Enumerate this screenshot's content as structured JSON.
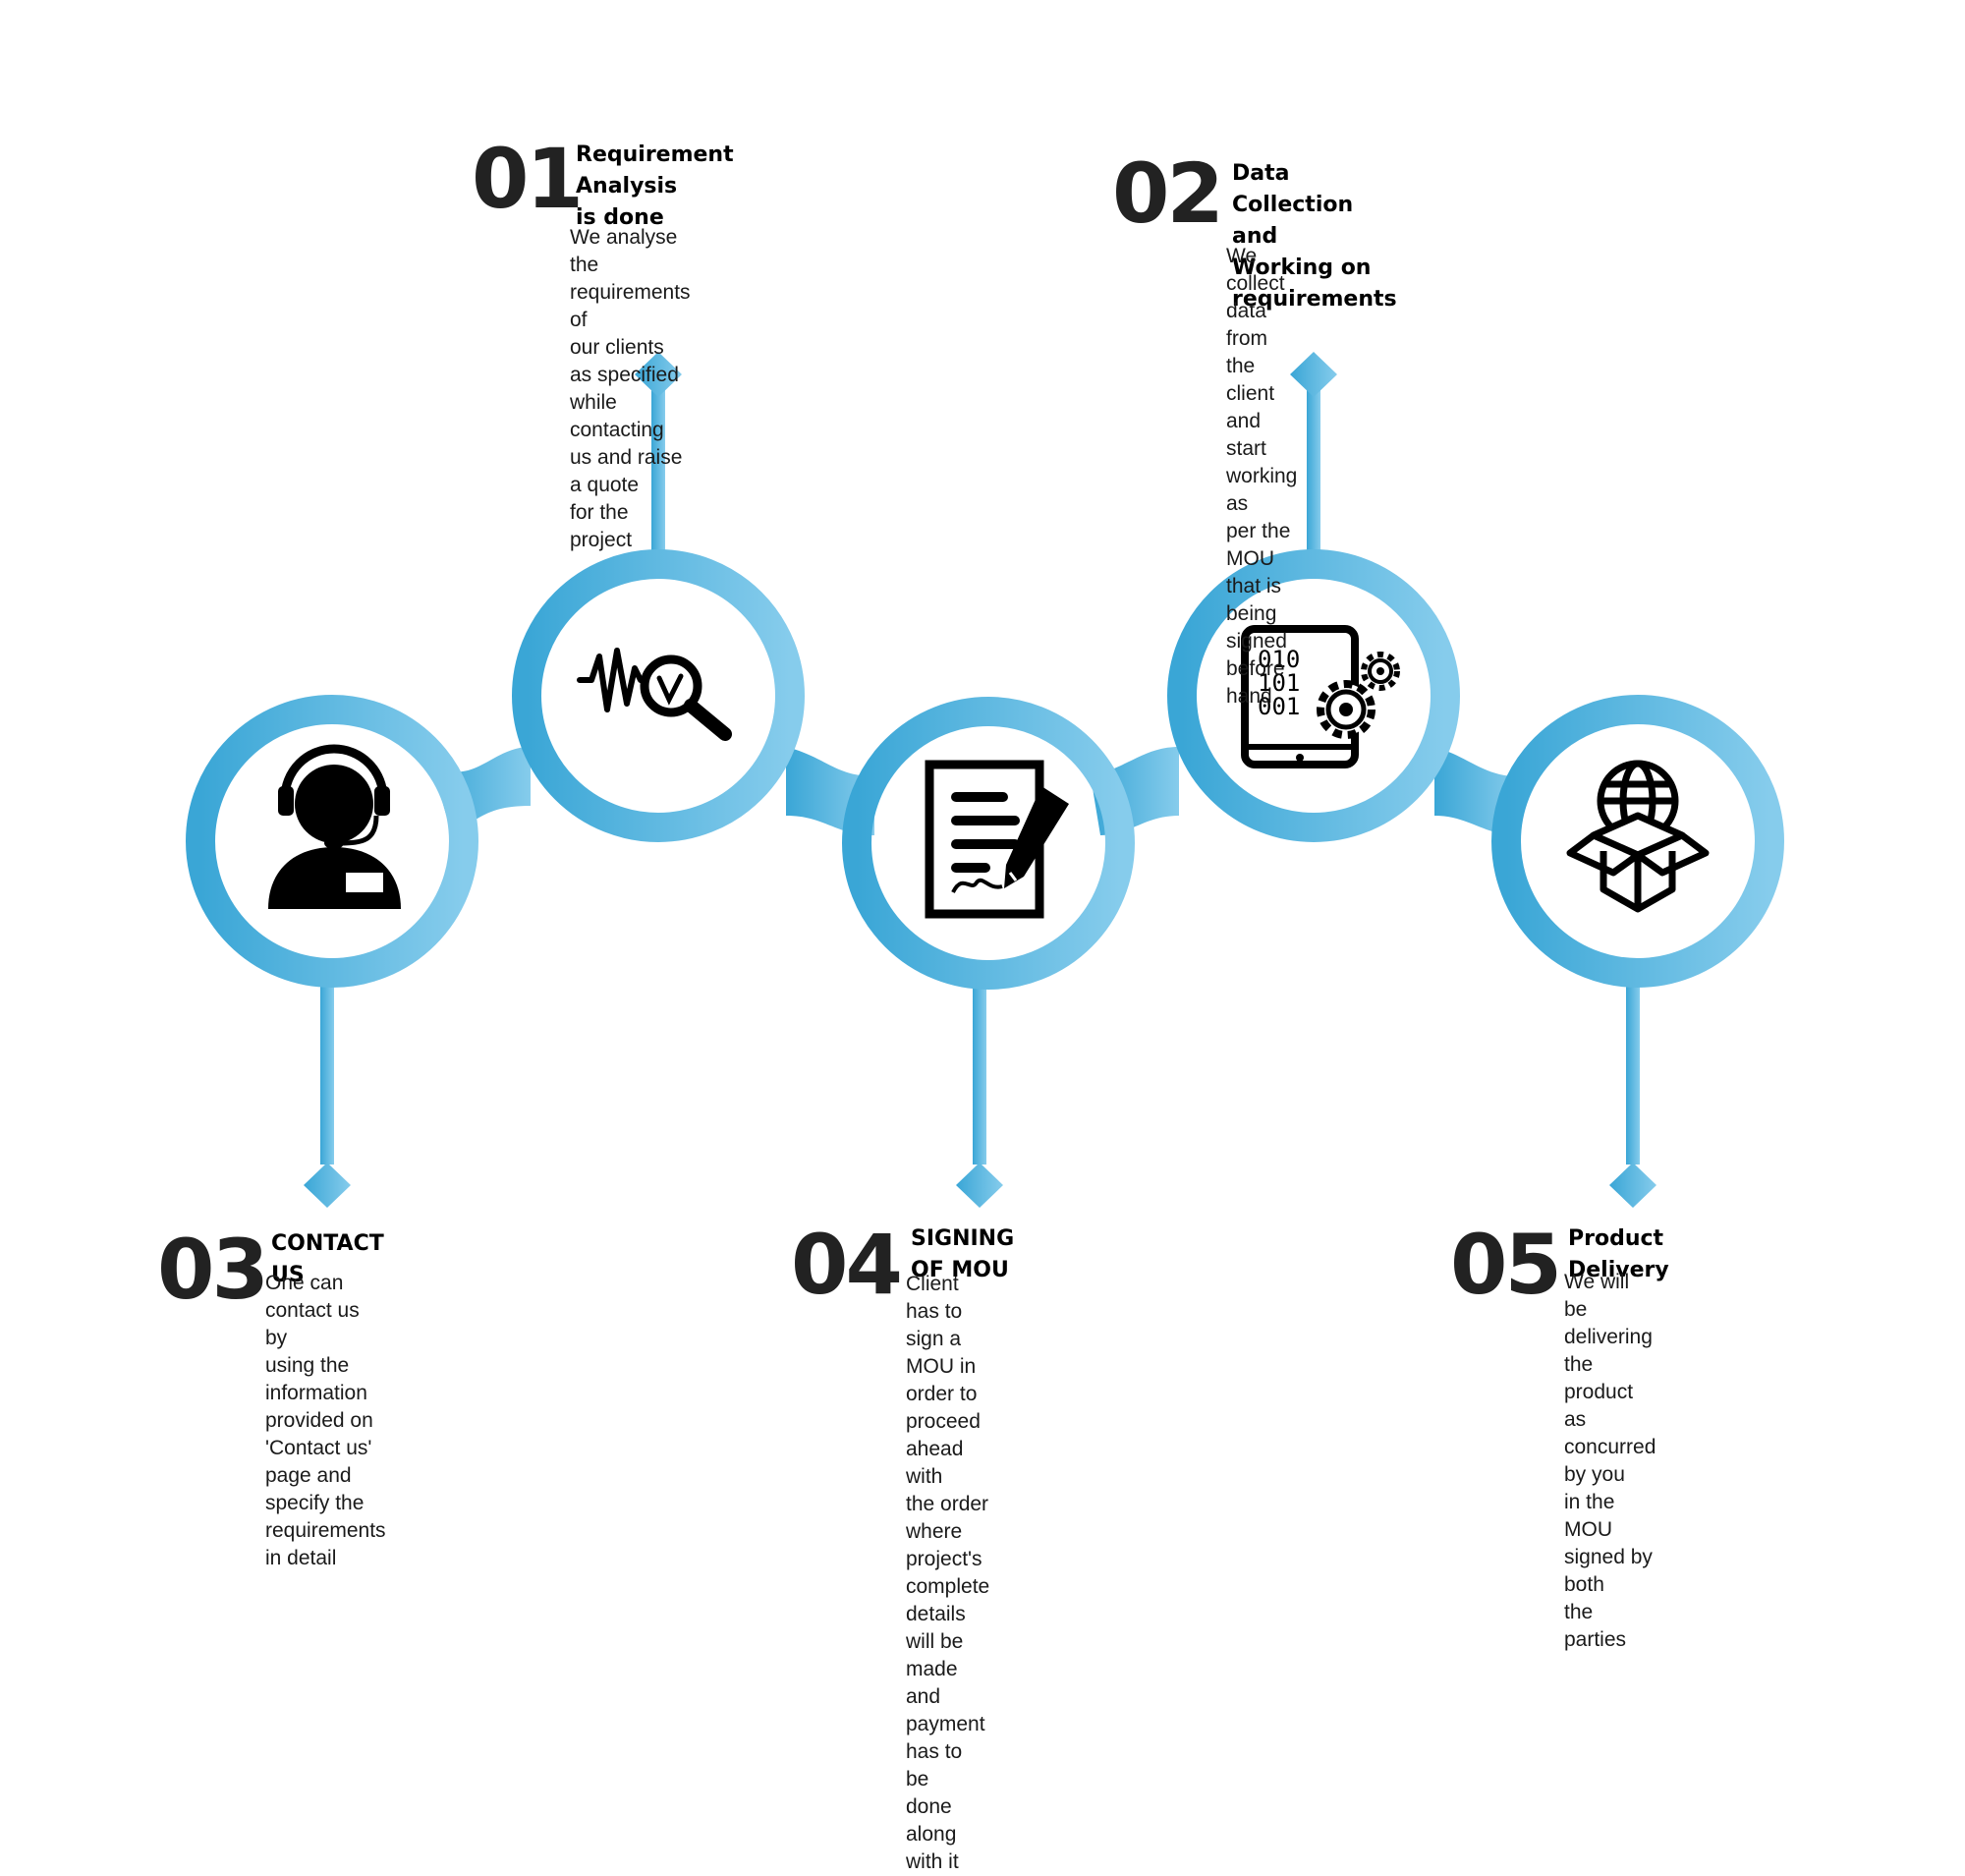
{
  "colors": {
    "track_left": "#3aa6d6",
    "track_right": "#86ccec"
  },
  "steps": [
    {
      "number": "01",
      "title": "Requirement Analysis\nis done",
      "description": "We analyse the requirements of\nour clients as specified while\ncontacting us and raise a quote\nfor the project",
      "icon": "analysis-magnifier-icon"
    },
    {
      "number": "02",
      "title": "Data Collection and\nWorking on requirements",
      "description": "We collect data from the client\nand start working as\nper the MOU that is being signed before hand",
      "icon": "tablet-data-gears-icon"
    },
    {
      "number": "03",
      "title": "CONTACT US",
      "description": "One can contact us by\nusing the information\nprovided on 'Contact us'\npage and specify the\nrequirements in detail",
      "icon": "customer-support-icon"
    },
    {
      "number": "04",
      "title": "SIGNING OF MOU",
      "description": "Client has to sign a MOU in\norder to proceed ahead with\nthe order where project's\ncomplete details will be\nmade and payment has to be\ndone along with it",
      "icon": "document-signing-icon"
    },
    {
      "number": "05",
      "title": "Product Delivery",
      "description": "We will be delivering the\nproduct as concurred by you\nin the MOU signed by both\nthe parties",
      "icon": "global-package-icon"
    }
  ],
  "binary_rows": [
    "010",
    "101",
    "001"
  ]
}
